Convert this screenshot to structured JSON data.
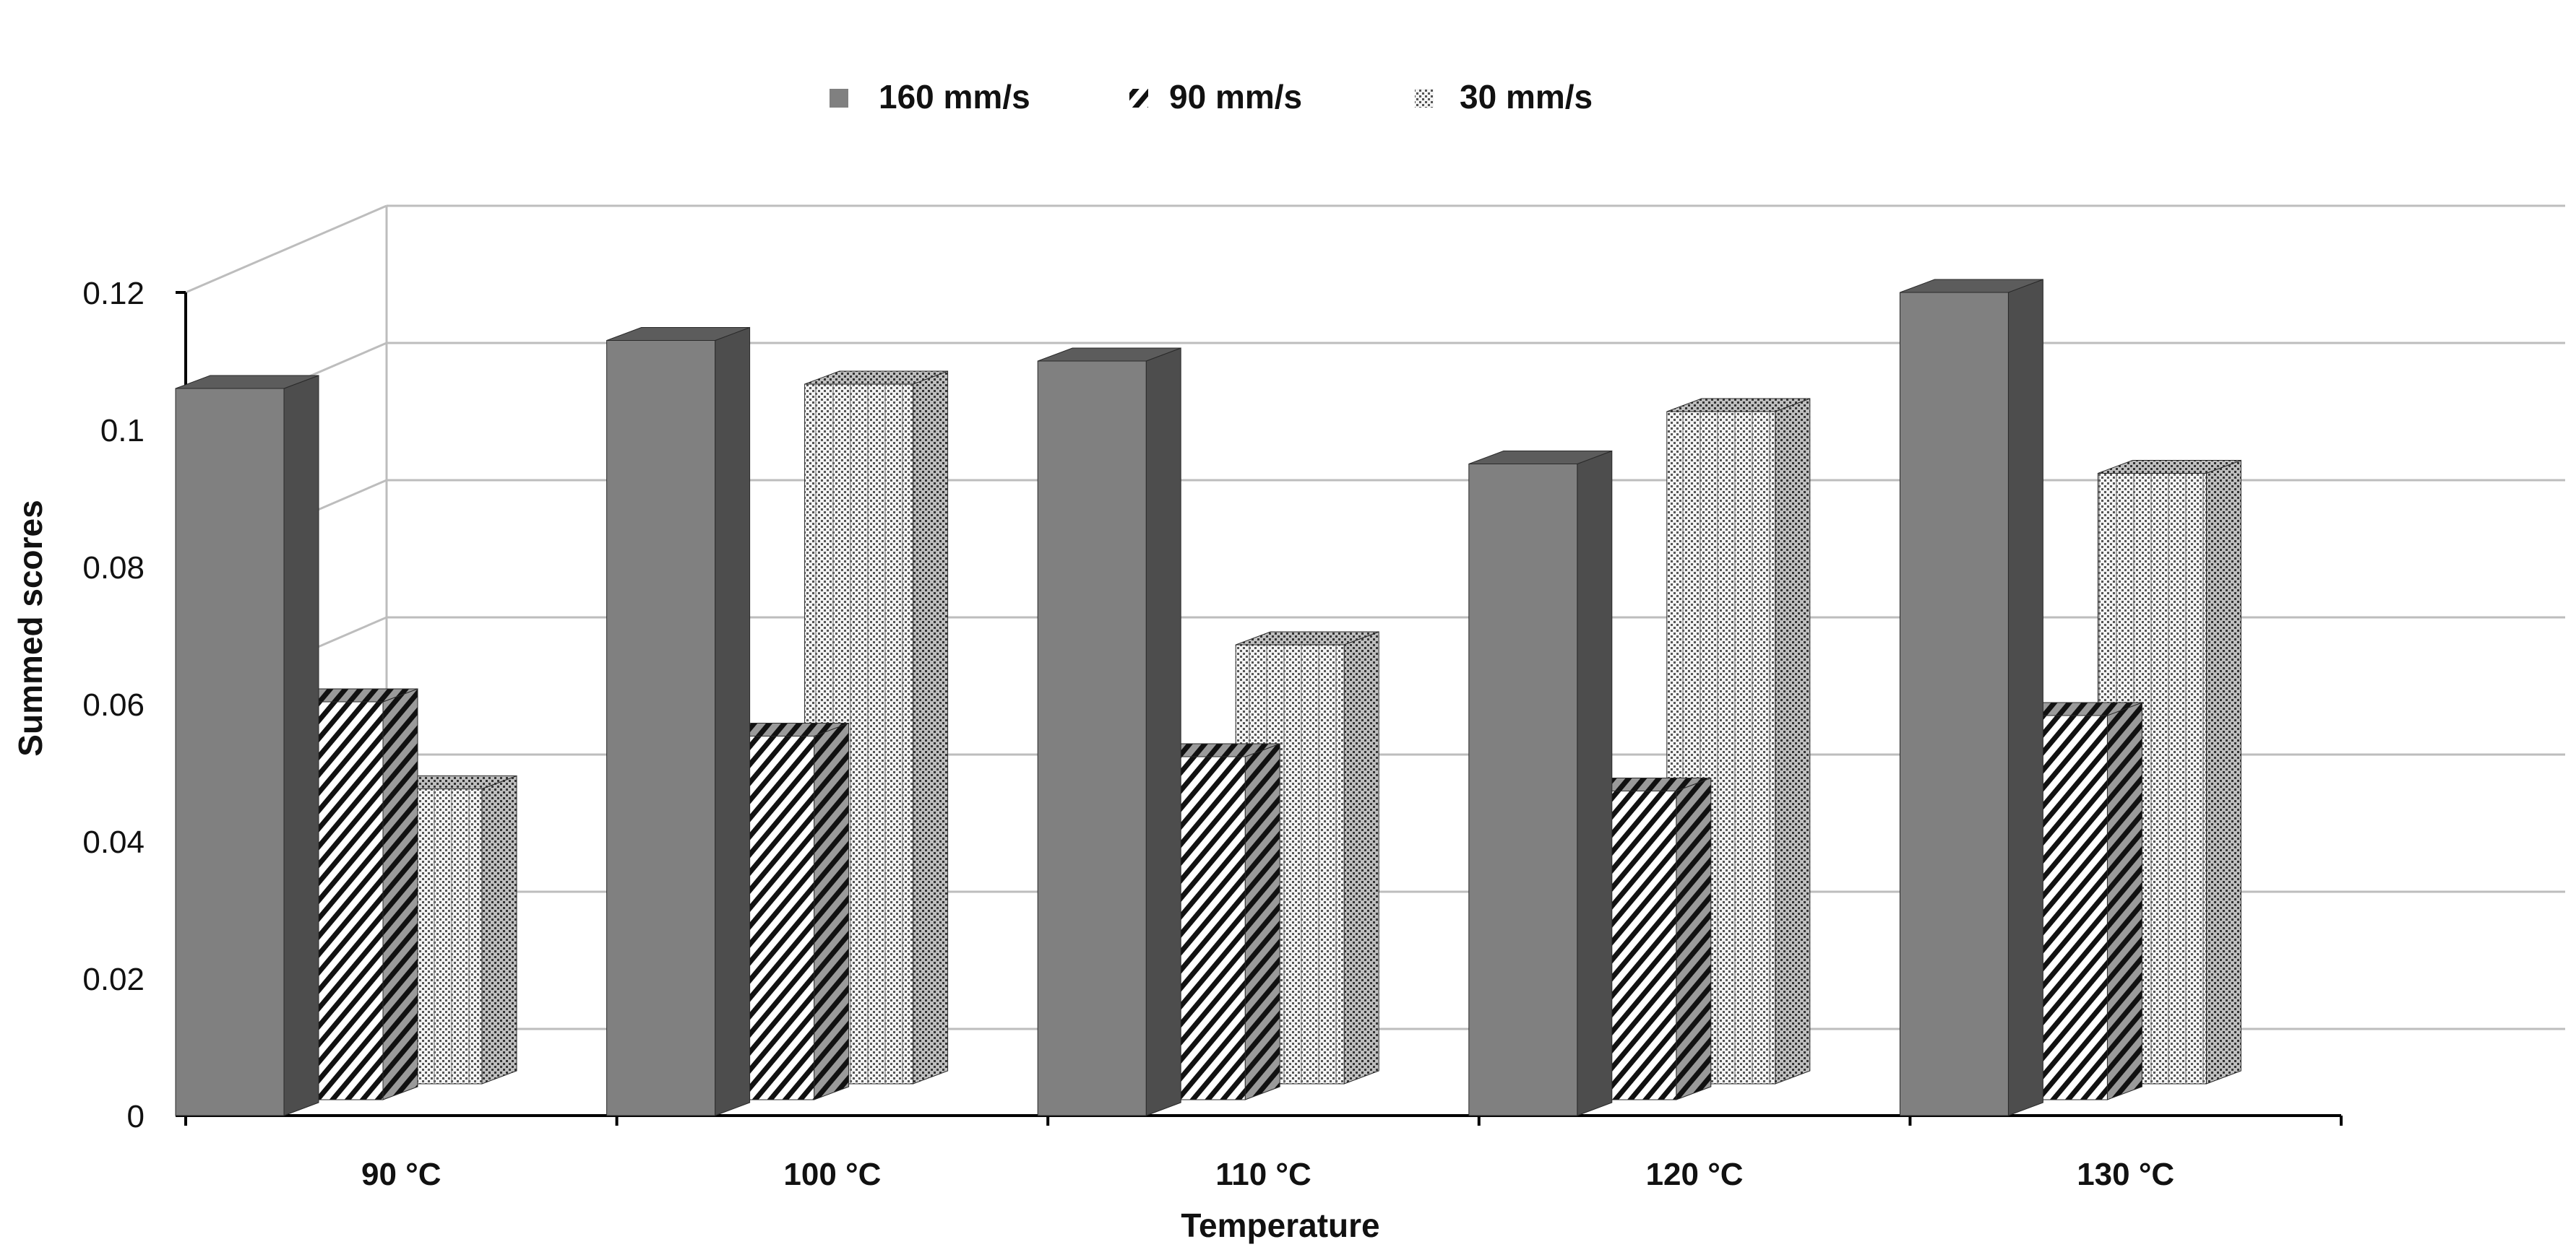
{
  "chart_data": {
    "type": "bar",
    "style": "3d-clustered-column",
    "title": "",
    "xlabel": "Temperature",
    "ylabel": "Summed scores",
    "categories": [
      "90 °C",
      "100 °C",
      "110 °C",
      "120 °C",
      "130 °C"
    ],
    "series": [
      {
        "name": "160 mm/s",
        "values": [
          0.106,
          0.113,
          0.11,
          0.095,
          0.12
        ],
        "pattern": "solid"
      },
      {
        "name": "90 mm/s",
        "values": [
          0.058,
          0.053,
          0.05,
          0.045,
          0.056
        ],
        "pattern": "diagonal-stripes"
      },
      {
        "name": "30 mm/s",
        "values": [
          0.043,
          0.102,
          0.064,
          0.098,
          0.089
        ],
        "pattern": "dotted"
      }
    ],
    "ylim": [
      0,
      0.12
    ],
    "yticks": [
      "0",
      "0.02",
      "0.04",
      "0.06",
      "0.08",
      "0.1",
      "0.12"
    ],
    "grid": true,
    "legend_position": "top-center",
    "colors": {
      "bar_front": "#808080",
      "bar_side": "#4d4d4d",
      "bar_top": "#5c5c5c",
      "grid": "#bdbdbd",
      "axis": "#000000"
    }
  }
}
